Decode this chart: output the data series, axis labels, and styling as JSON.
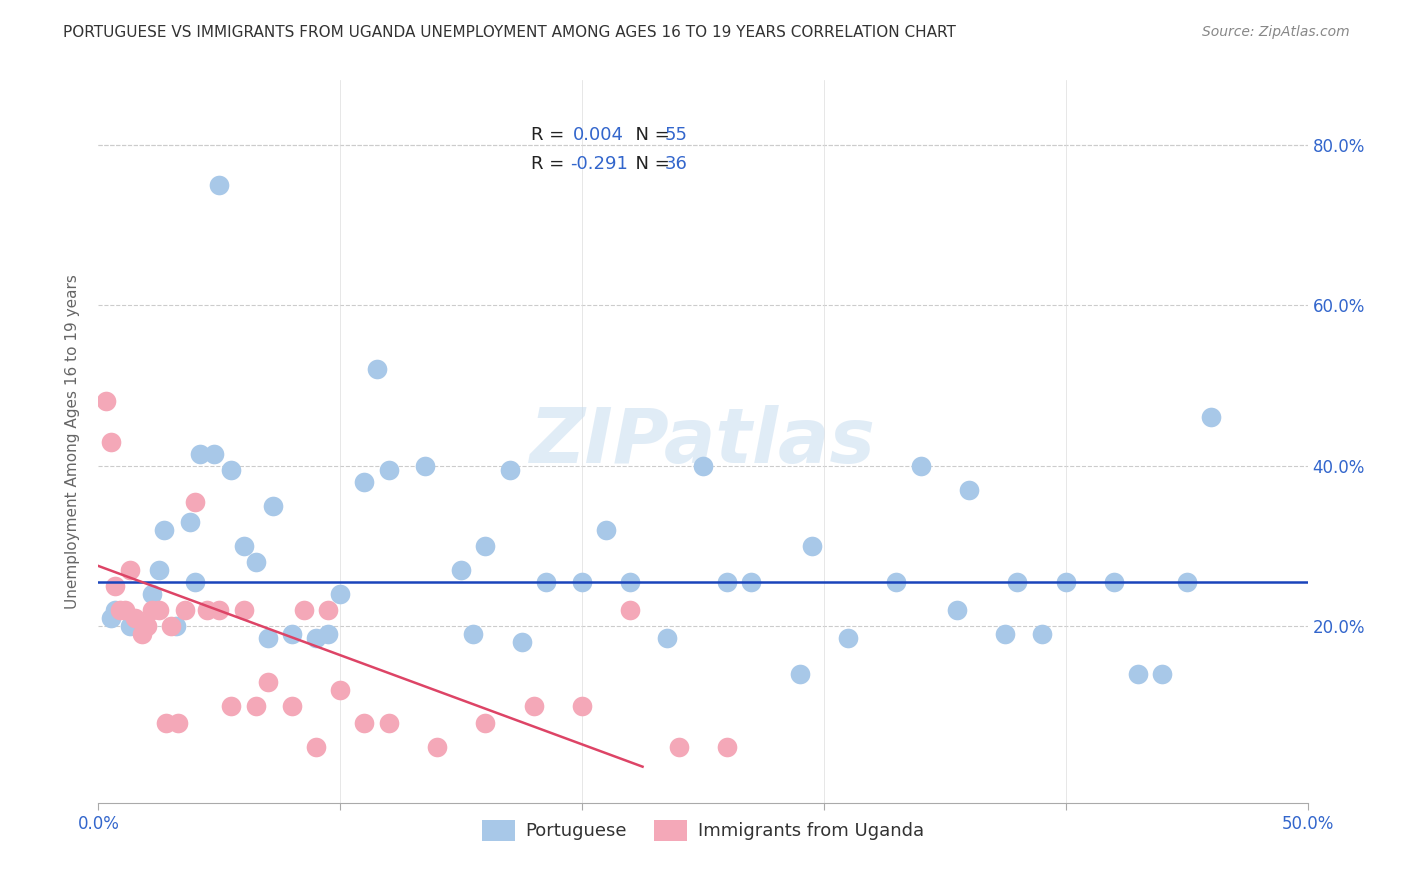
{
  "title": "PORTUGUESE VS IMMIGRANTS FROM UGANDA UNEMPLOYMENT AMONG AGES 16 TO 19 YEARS CORRELATION CHART",
  "source": "Source: ZipAtlas.com",
  "ylabel": "Unemployment Among Ages 16 to 19 years",
  "xlim": [
    0.0,
    0.5
  ],
  "ylim": [
    -0.02,
    0.88
  ],
  "xticks": [
    0.0,
    0.1,
    0.2,
    0.3,
    0.4,
    0.5
  ],
  "xtick_labels": [
    "0.0%",
    "",
    "",
    "",
    "",
    "50.0%"
  ],
  "yticks_right": [
    0.2,
    0.4,
    0.6,
    0.8
  ],
  "ytick_labels_right": [
    "20.0%",
    "40.0%",
    "60.0%",
    "80.0%"
  ],
  "yticks_grid": [
    0.2,
    0.4,
    0.6,
    0.8
  ],
  "blue_R": "0.004",
  "blue_N": "55",
  "pink_R": "-0.291",
  "pink_N": "36",
  "blue_color": "#a8c8e8",
  "pink_color": "#f4a8b8",
  "blue_line_color": "#1a44bb",
  "pink_line_color": "#dd4466",
  "label_color": "#3366cc",
  "watermark": "ZIPatlas",
  "blue_points_x": [
    0.04,
    0.007,
    0.013,
    0.018,
    0.005,
    0.022,
    0.025,
    0.027,
    0.032,
    0.038,
    0.042,
    0.048,
    0.055,
    0.06,
    0.065,
    0.072,
    0.08,
    0.095,
    0.1,
    0.11,
    0.115,
    0.12,
    0.135,
    0.15,
    0.16,
    0.17,
    0.185,
    0.2,
    0.21,
    0.22,
    0.235,
    0.25,
    0.26,
    0.27,
    0.29,
    0.31,
    0.34,
    0.36,
    0.38,
    0.4,
    0.42,
    0.43,
    0.44,
    0.45,
    0.46,
    0.33,
    0.355,
    0.375,
    0.39,
    0.295,
    0.155,
    0.175,
    0.05,
    0.07,
    0.09
  ],
  "blue_points_y": [
    0.255,
    0.22,
    0.2,
    0.195,
    0.21,
    0.24,
    0.27,
    0.32,
    0.2,
    0.33,
    0.415,
    0.415,
    0.395,
    0.3,
    0.28,
    0.35,
    0.19,
    0.19,
    0.24,
    0.38,
    0.52,
    0.395,
    0.4,
    0.27,
    0.3,
    0.395,
    0.255,
    0.255,
    0.32,
    0.255,
    0.185,
    0.4,
    0.255,
    0.255,
    0.14,
    0.185,
    0.4,
    0.37,
    0.255,
    0.255,
    0.255,
    0.14,
    0.14,
    0.255,
    0.46,
    0.255,
    0.22,
    0.19,
    0.19,
    0.3,
    0.19,
    0.18,
    0.75,
    0.185,
    0.185
  ],
  "pink_points_x": [
    0.003,
    0.005,
    0.007,
    0.009,
    0.011,
    0.013,
    0.015,
    0.018,
    0.02,
    0.022,
    0.025,
    0.028,
    0.03,
    0.033,
    0.036,
    0.04,
    0.045,
    0.05,
    0.055,
    0.06,
    0.065,
    0.07,
    0.08,
    0.085,
    0.09,
    0.095,
    0.1,
    0.11,
    0.12,
    0.14,
    0.16,
    0.18,
    0.2,
    0.22,
    0.24,
    0.26
  ],
  "pink_points_y": [
    0.48,
    0.43,
    0.25,
    0.22,
    0.22,
    0.27,
    0.21,
    0.19,
    0.2,
    0.22,
    0.22,
    0.08,
    0.2,
    0.08,
    0.22,
    0.355,
    0.22,
    0.22,
    0.1,
    0.22,
    0.1,
    0.13,
    0.1,
    0.22,
    0.05,
    0.22,
    0.12,
    0.08,
    0.08,
    0.05,
    0.08,
    0.1,
    0.1,
    0.22,
    0.05,
    0.05
  ],
  "blue_hline_y": 0.255,
  "pink_trend_x": [
    0.0,
    0.225
  ],
  "pink_trend_y": [
    0.275,
    0.025
  ],
  "grid_color": "#cccccc",
  "title_color": "#333333",
  "axis_label_color": "#666666"
}
